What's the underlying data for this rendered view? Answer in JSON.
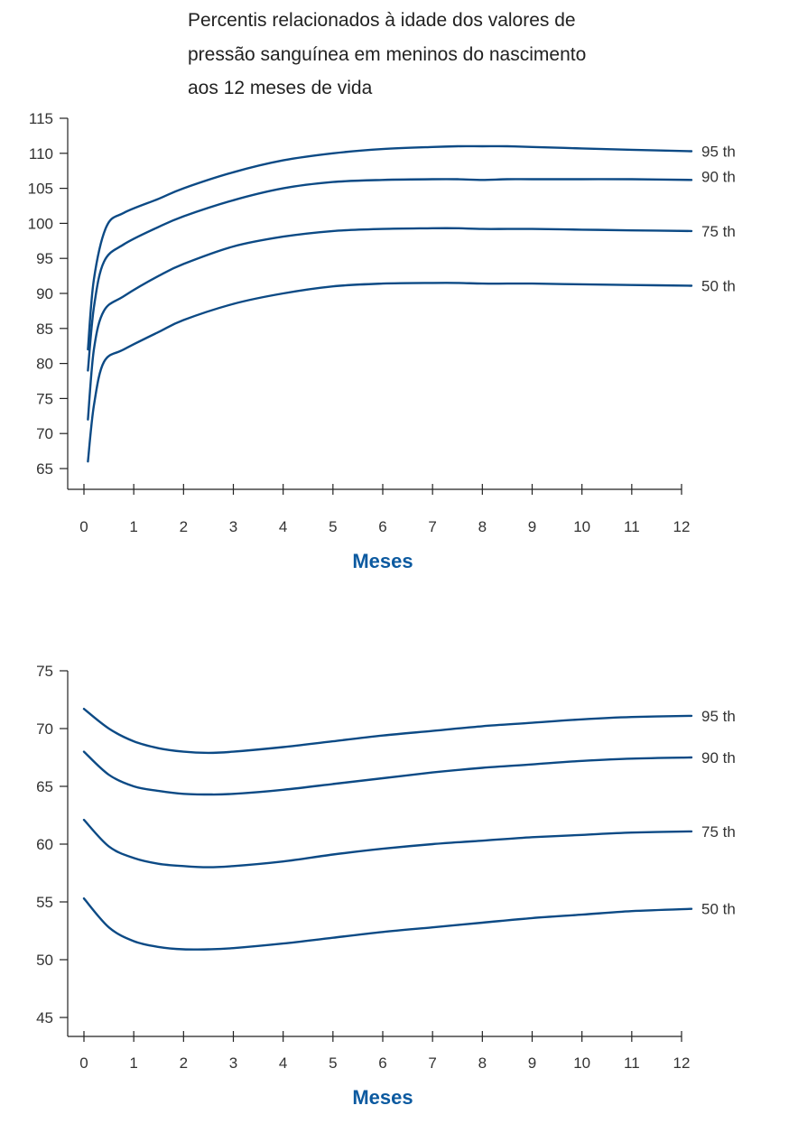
{
  "title_lines": [
    "Percentis relacionados à idade dos valores de",
    "pressão sanguínea em meninos do nascimento",
    "aos 12 meses de vida"
  ],
  "colors": {
    "line": "#0c4a85",
    "axis": "#222222",
    "accent": "#0c5aa0"
  },
  "chart_data": [
    {
      "type": "line",
      "title": "Percentis relacionados à idade dos valores de pressão sanguínea em meninos do nascimento aos 12 meses de vida",
      "xlabel": "Meses",
      "ylabel": "",
      "xlim": [
        0,
        12
      ],
      "ylim": [
        65,
        115
      ],
      "xticks": [
        0,
        1,
        2,
        3,
        4,
        5,
        6,
        7,
        8,
        9,
        10,
        11,
        12
      ],
      "yticks": [
        65,
        70,
        75,
        80,
        85,
        90,
        95,
        100,
        105,
        110,
        115
      ],
      "grid": false,
      "legend": "inline-right",
      "series": [
        {
          "name": "95 th",
          "x": [
            0.08,
            0.2,
            0.45,
            0.8,
            1.5,
            2,
            3,
            4,
            5,
            6,
            7,
            7.5,
            8,
            8.5,
            9,
            10,
            11,
            12.2
          ],
          "y": [
            82,
            92,
            99.5,
            101.5,
            103.5,
            105,
            107.3,
            109,
            110,
            110.6,
            110.9,
            111,
            111,
            111,
            110.9,
            110.7,
            110.5,
            110.3
          ]
        },
        {
          "name": "90 th",
          "x": [
            0.08,
            0.2,
            0.4,
            0.8,
            1.5,
            2,
            3,
            4,
            5,
            6,
            7,
            7.5,
            8,
            8.5,
            9,
            10,
            11,
            12.2
          ],
          "y": [
            79,
            88,
            94.5,
            97,
            99.5,
            101,
            103.3,
            105,
            105.9,
            106.2,
            106.3,
            106.3,
            106.2,
            106.3,
            106.3,
            106.3,
            106.3,
            106.2
          ]
        },
        {
          "name": "75 th",
          "x": [
            0.08,
            0.2,
            0.4,
            0.8,
            1.5,
            2,
            3,
            4,
            5,
            6,
            7,
            7.5,
            8,
            8.5,
            9,
            10,
            11,
            12.2
          ],
          "y": [
            72,
            82,
            87.5,
            89.6,
            92.5,
            94.2,
            96.7,
            98.1,
            98.9,
            99.2,
            99.3,
            99.3,
            99.2,
            99.2,
            99.2,
            99.1,
            99,
            98.9
          ]
        },
        {
          "name": "50 th",
          "x": [
            0.08,
            0.2,
            0.4,
            0.8,
            1.5,
            2,
            3,
            4,
            5,
            6,
            7,
            7.5,
            8,
            8.5,
            9,
            10,
            11,
            12.2
          ],
          "y": [
            66,
            74,
            80.2,
            82,
            84.5,
            86.2,
            88.5,
            90,
            91,
            91.4,
            91.5,
            91.5,
            91.4,
            91.4,
            91.4,
            91.3,
            91.2,
            91.1
          ]
        }
      ]
    },
    {
      "type": "line",
      "xlabel": "Meses",
      "ylabel": "",
      "xlim": [
        0,
        12
      ],
      "ylim": [
        45,
        75
      ],
      "xticks": [
        0,
        1,
        2,
        3,
        4,
        5,
        6,
        7,
        8,
        9,
        10,
        11,
        12
      ],
      "yticks": [
        45,
        50,
        55,
        60,
        65,
        70,
        75
      ],
      "grid": false,
      "legend": "inline-right",
      "series": [
        {
          "name": "95 th",
          "x": [
            0,
            0.5,
            1,
            1.5,
            2,
            2.5,
            3,
            4,
            5,
            6,
            7,
            8,
            9,
            10,
            11,
            12.2
          ],
          "y": [
            71.7,
            70,
            68.9,
            68.3,
            68,
            67.9,
            68,
            68.4,
            68.9,
            69.4,
            69.8,
            70.2,
            70.5,
            70.8,
            71,
            71.1
          ]
        },
        {
          "name": "90 th",
          "x": [
            0,
            0.5,
            1,
            1.5,
            2,
            2.5,
            3,
            4,
            5,
            6,
            7,
            8,
            9,
            10,
            11,
            12.2
          ],
          "y": [
            68,
            66,
            65,
            64.6,
            64.35,
            64.3,
            64.35,
            64.7,
            65.2,
            65.7,
            66.2,
            66.6,
            66.9,
            67.2,
            67.4,
            67.5
          ]
        },
        {
          "name": "75 th",
          "x": [
            0,
            0.5,
            1,
            1.5,
            2,
            2.5,
            3,
            4,
            5,
            6,
            7,
            8,
            9,
            10,
            11,
            12.2
          ],
          "y": [
            62.1,
            59.8,
            58.8,
            58.3,
            58.1,
            58,
            58.1,
            58.5,
            59.1,
            59.6,
            60,
            60.3,
            60.6,
            60.8,
            61,
            61.1
          ]
        },
        {
          "name": "50 th",
          "x": [
            0,
            0.5,
            1,
            1.5,
            2,
            2.5,
            3,
            4,
            5,
            6,
            7,
            8,
            9,
            10,
            11,
            12.2
          ],
          "y": [
            55.3,
            52.8,
            51.6,
            51.1,
            50.9,
            50.9,
            51,
            51.4,
            51.9,
            52.4,
            52.8,
            53.2,
            53.6,
            53.9,
            54.2,
            54.4
          ]
        }
      ]
    }
  ]
}
